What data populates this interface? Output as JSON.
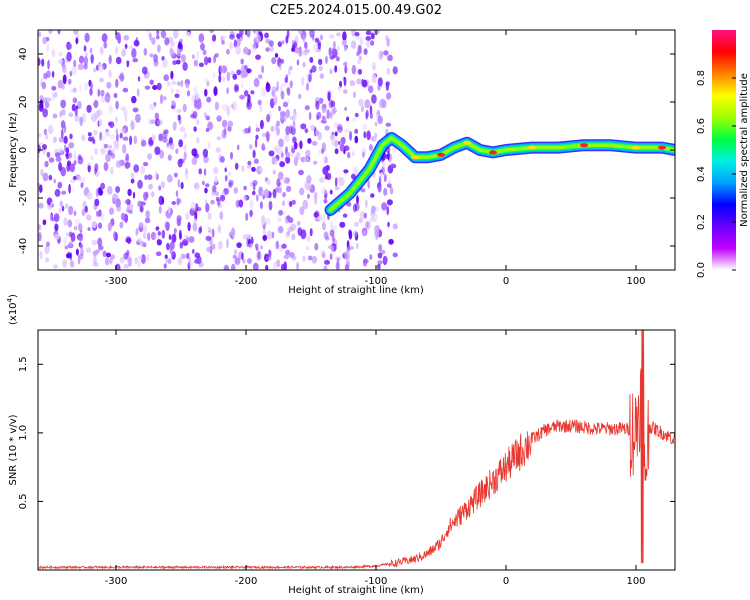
{
  "title": "C2E5.2024.015.00.49.G02",
  "colors": {
    "snr_line": "#e8372f",
    "colormap": [
      "#ffffff",
      "#c000ff",
      "#6a00ff",
      "#0000ff",
      "#00a0ff",
      "#00f0e0",
      "#00ff40",
      "#a0ff00",
      "#ffff00",
      "#ff8000",
      "#ff0000",
      "#ff1080"
    ]
  },
  "chart_data": [
    {
      "type": "heatmap",
      "name": "spectrogram",
      "xlabel": "Height of straight line (km)",
      "ylabel": "Frequency (Hz)",
      "xlim": [
        -360,
        130
      ],
      "ylim": [
        -50,
        50
      ],
      "xticks": [
        "-300",
        "-200",
        "-100",
        "0",
        "100"
      ],
      "xtick_values": [
        -300,
        -200,
        -100,
        0,
        100
      ],
      "yticks": [
        "-40",
        "-20",
        "0",
        "20",
        "40"
      ],
      "ytick_values": [
        -40,
        -20,
        0,
        20,
        40
      ],
      "noise_region_x": [
        -360,
        -85
      ],
      "signal_track": {
        "x": [
          -135,
          -120,
          -105,
          -95,
          -88,
          -80,
          -70,
          -60,
          -50,
          -40,
          -30,
          -20,
          -10,
          0,
          20,
          40,
          60,
          80,
          100,
          110,
          120,
          130
        ],
        "y": [
          -25,
          -18,
          -8,
          2,
          5,
          2,
          -3,
          -3,
          -2,
          1,
          3,
          0,
          -1,
          0,
          1,
          1,
          2,
          2,
          1,
          1,
          1,
          0
        ]
      },
      "colorbar": {
        "label": "Normalized spectral amplitude",
        "range": [
          0,
          1
        ],
        "ticks": [
          "0.0",
          "0.2",
          "0.4",
          "0.6",
          "0.8"
        ],
        "tick_values": [
          0.0,
          0.2,
          0.4,
          0.6,
          0.8
        ]
      }
    },
    {
      "type": "line",
      "name": "snr",
      "xlabel": "Height of straight line (km)",
      "ylabel": "SNR (10 * v/v)",
      "yscale_label": "(x10",
      "yscale_exp": "4",
      "yscale_close": ")",
      "xlim": [
        -360,
        130
      ],
      "ylim": [
        0,
        1.75
      ],
      "xticks": [
        "-300",
        "-200",
        "-100",
        "0",
        "100"
      ],
      "xtick_values": [
        -300,
        -200,
        -100,
        0,
        100
      ],
      "yticks": [
        "0.5",
        "1.0",
        "1.5"
      ],
      "ytick_values": [
        0.5,
        1.0,
        1.5
      ],
      "x": [
        -360,
        -300,
        -200,
        -120,
        -100,
        -85,
        -70,
        -60,
        -50,
        -45,
        -40,
        -30,
        -20,
        -10,
        0,
        10,
        20,
        30,
        40,
        50,
        60,
        70,
        80,
        90,
        100,
        104,
        106,
        110,
        120,
        130
      ],
      "y": [
        0.02,
        0.02,
        0.02,
        0.02,
        0.03,
        0.05,
        0.08,
        0.12,
        0.2,
        0.3,
        0.35,
        0.45,
        0.55,
        0.65,
        0.75,
        0.85,
        0.95,
        1.02,
        1.05,
        1.05,
        1.04,
        1.03,
        1.03,
        1.03,
        1.02,
        1.3,
        0.6,
        1.05,
        1.0,
        0.95
      ]
    }
  ]
}
